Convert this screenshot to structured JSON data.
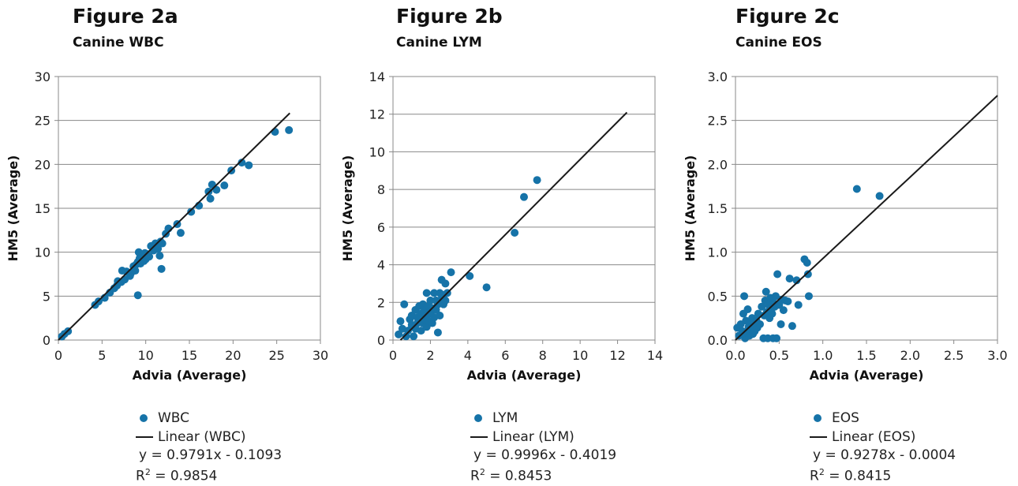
{
  "colors": {
    "marker": "#1673a8",
    "fit_line": "#1a1a1a",
    "frame": "#888888"
  },
  "chart_data": [
    {
      "type": "scatter",
      "title": "Figure 2a",
      "subtitle": "Canine WBC",
      "xlabel": "Advia (Average)",
      "ylabel": "HM5 (Average)",
      "xlim": [
        0,
        30
      ],
      "ylim": [
        0,
        30
      ],
      "xticks": [
        0,
        5,
        10,
        15,
        20,
        25,
        30
      ],
      "yticks": [
        0,
        5,
        10,
        15,
        20,
        25,
        30
      ],
      "xtick_labels": [
        "0",
        "5",
        "10",
        "15",
        "20",
        "25",
        "30"
      ],
      "ytick_labels": [
        "0",
        "5",
        "10",
        "15",
        "20",
        "25",
        "30"
      ],
      "grid": "horizontal",
      "legend": {
        "series_label": "WBC",
        "fit_label": "Linear (WBC)",
        "equation": "y = 0.9791x - 0.1093",
        "r2_label": "R",
        "r2_sup": "2",
        "r2_value": " = 0.9854"
      },
      "fit": {
        "slope": 0.9791,
        "intercept": -0.1093,
        "x_range": [
          0,
          26.5
        ]
      },
      "points": [
        [
          0.4,
          0.4
        ],
        [
          0.7,
          0.7
        ],
        [
          1.1,
          1.0
        ],
        [
          4.2,
          4.0
        ],
        [
          4.6,
          4.4
        ],
        [
          5.3,
          4.8
        ],
        [
          5.9,
          5.4
        ],
        [
          6.4,
          5.9
        ],
        [
          6.7,
          6.2
        ],
        [
          6.8,
          6.7
        ],
        [
          7.2,
          6.6
        ],
        [
          7.3,
          7.9
        ],
        [
          7.6,
          6.9
        ],
        [
          7.8,
          7.8
        ],
        [
          8.2,
          7.3
        ],
        [
          8.3,
          7.6
        ],
        [
          8.6,
          8.4
        ],
        [
          8.8,
          7.9
        ],
        [
          8.9,
          8.6
        ],
        [
          9.1,
          8.9
        ],
        [
          9.2,
          10.0
        ],
        [
          9.3,
          9.3
        ],
        [
          9.4,
          8.7
        ],
        [
          9.6,
          9.6
        ],
        [
          9.8,
          9.0
        ],
        [
          9.9,
          9.9
        ],
        [
          10.0,
          9.2
        ],
        [
          10.1,
          9.8
        ],
        [
          10.4,
          9.5
        ],
        [
          10.6,
          10.7
        ],
        [
          10.9,
          10.2
        ],
        [
          11.1,
          11.0
        ],
        [
          11.4,
          10.4
        ],
        [
          11.6,
          9.6
        ],
        [
          11.7,
          11.2
        ],
        [
          11.9,
          11.0
        ],
        [
          11.8,
          8.1
        ],
        [
          9.1,
          5.1
        ],
        [
          12.3,
          12.1
        ],
        [
          12.6,
          12.7
        ],
        [
          13.6,
          13.2
        ],
        [
          14.0,
          12.2
        ],
        [
          15.2,
          14.6
        ],
        [
          16.1,
          15.3
        ],
        [
          17.2,
          16.9
        ],
        [
          17.4,
          16.1
        ],
        [
          17.6,
          17.7
        ],
        [
          18.1,
          17.1
        ],
        [
          19.0,
          17.6
        ],
        [
          19.8,
          19.3
        ],
        [
          21.0,
          20.2
        ],
        [
          21.8,
          19.9
        ],
        [
          24.8,
          23.7
        ],
        [
          26.4,
          23.9
        ]
      ]
    },
    {
      "type": "scatter",
      "title": "Figure 2b",
      "subtitle": "Canine LYM",
      "xlabel": "Advia (Average)",
      "ylabel": "HM5 (Average)",
      "xlim": [
        0,
        14
      ],
      "ylim": [
        0,
        14
      ],
      "xticks": [
        0,
        2,
        4,
        6,
        8,
        10,
        12,
        14
      ],
      "yticks": [
        0,
        2,
        4,
        6,
        8,
        10,
        12,
        14
      ],
      "xtick_labels": [
        "0",
        "2",
        "4",
        "6",
        "8",
        "10",
        "12",
        "14"
      ],
      "ytick_labels": [
        "0",
        "2",
        "4",
        "6",
        "8",
        "10",
        "12",
        "14"
      ],
      "grid": "horizontal",
      "legend": {
        "series_label": "LYM",
        "fit_label": "Linear (LYM)",
        "equation": "y = 0.9996x - 0.4019",
        "r2_label": "R",
        "r2_sup": "2",
        "r2_value": " = 0.8453"
      },
      "fit": {
        "slope": 0.9996,
        "intercept": -0.4019,
        "x_range": [
          0.4,
          12.5
        ]
      },
      "points": [
        [
          0.3,
          0.3
        ],
        [
          0.4,
          1.0
        ],
        [
          0.5,
          0.6
        ],
        [
          0.6,
          1.9
        ],
        [
          0.7,
          0.2
        ],
        [
          0.8,
          0.5
        ],
        [
          0.9,
          1.1
        ],
        [
          1.0,
          0.8
        ],
        [
          1.0,
          1.3
        ],
        [
          1.1,
          0.2
        ],
        [
          1.2,
          0.6
        ],
        [
          1.2,
          1.6
        ],
        [
          1.3,
          0.9
        ],
        [
          1.3,
          1.2
        ],
        [
          1.4,
          1.8
        ],
        [
          1.5,
          0.5
        ],
        [
          1.5,
          1.4
        ],
        [
          1.6,
          0.9
        ],
        [
          1.6,
          1.9
        ],
        [
          1.7,
          1.1
        ],
        [
          1.7,
          1.6
        ],
        [
          1.8,
          0.7
        ],
        [
          1.8,
          1.3
        ],
        [
          1.8,
          2.5
        ],
        [
          1.9,
          1.0
        ],
        [
          1.9,
          1.8
        ],
        [
          2.0,
          1.4
        ],
        [
          2.0,
          2.1
        ],
        [
          2.1,
          0.9
        ],
        [
          2.1,
          1.7
        ],
        [
          2.2,
          2.5
        ],
        [
          2.2,
          1.2
        ],
        [
          2.3,
          1.6
        ],
        [
          2.3,
          2.1
        ],
        [
          2.4,
          0.4
        ],
        [
          2.4,
          1.9
        ],
        [
          2.5,
          2.5
        ],
        [
          2.5,
          1.3
        ],
        [
          2.6,
          3.2
        ],
        [
          2.6,
          2.2
        ],
        [
          2.7,
          1.9
        ],
        [
          2.7,
          2.4
        ],
        [
          2.8,
          2.1
        ],
        [
          2.8,
          3.0
        ],
        [
          2.9,
          2.5
        ],
        [
          3.1,
          3.6
        ],
        [
          4.1,
          3.4
        ],
        [
          5.0,
          2.8
        ],
        [
          6.5,
          5.7
        ],
        [
          7.0,
          7.6
        ],
        [
          7.7,
          8.5
        ]
      ]
    },
    {
      "type": "scatter",
      "title": "Figure 2c",
      "subtitle": "Canine EOS",
      "xlabel": "Advia (Average)",
      "ylabel": "HM5 (Average)",
      "xlim": [
        0,
        3
      ],
      "ylim": [
        0,
        3
      ],
      "xticks": [
        0,
        0.5,
        1,
        1.5,
        2,
        2.5,
        3
      ],
      "yticks": [
        0,
        0.5,
        1,
        1.5,
        2,
        2.5,
        3
      ],
      "xtick_labels": [
        "0.0",
        "0.5",
        "1.0",
        "1.5",
        "2.0",
        "2.5",
        "3.0"
      ],
      "ytick_labels": [
        "0.0",
        "0.5",
        "1.0",
        "1.5",
        "2.0",
        "2.5",
        "3.0"
      ],
      "grid": "horizontal",
      "legend": {
        "series_label": "EOS",
        "fit_label": "Linear (EOS)",
        "equation": "y = 0.9278x - 0.0004",
        "r2_label": "R",
        "r2_sup": "2",
        "r2_value": " = 0.8415"
      },
      "fit": {
        "slope": 0.9278,
        "intercept": -0.0004,
        "x_range": [
          0,
          3.0
        ]
      },
      "points": [
        [
          0.02,
          0.14
        ],
        [
          0.04,
          0.05
        ],
        [
          0.06,
          0.18
        ],
        [
          0.08,
          0.1
        ],
        [
          0.09,
          0.3
        ],
        [
          0.1,
          0.5
        ],
        [
          0.11,
          0.02
        ],
        [
          0.12,
          0.22
        ],
        [
          0.13,
          0.08
        ],
        [
          0.14,
          0.35
        ],
        [
          0.15,
          0.15
        ],
        [
          0.16,
          0.05
        ],
        [
          0.17,
          0.2
        ],
        [
          0.18,
          0.12
        ],
        [
          0.19,
          0.25
        ],
        [
          0.2,
          0.07
        ],
        [
          0.21,
          0.17
        ],
        [
          0.22,
          0.1
        ],
        [
          0.24,
          0.22
        ],
        [
          0.25,
          0.14
        ],
        [
          0.26,
          0.3
        ],
        [
          0.28,
          0.18
        ],
        [
          0.3,
          0.38
        ],
        [
          0.32,
          0.02
        ],
        [
          0.33,
          0.28
        ],
        [
          0.34,
          0.45
        ],
        [
          0.35,
          0.55
        ],
        [
          0.36,
          0.32
        ],
        [
          0.37,
          0.02
        ],
        [
          0.38,
          0.4
        ],
        [
          0.39,
          0.25
        ],
        [
          0.4,
          0.48
        ],
        [
          0.41,
          0.35
        ],
        [
          0.42,
          0.3
        ],
        [
          0.43,
          0.02
        ],
        [
          0.44,
          0.42
        ],
        [
          0.45,
          0.38
        ],
        [
          0.46,
          0.5
        ],
        [
          0.47,
          0.02
        ],
        [
          0.48,
          0.75
        ],
        [
          0.5,
          0.4
        ],
        [
          0.52,
          0.18
        ],
        [
          0.53,
          0.46
        ],
        [
          0.55,
          0.34
        ],
        [
          0.57,
          0.45
        ],
        [
          0.6,
          0.44
        ],
        [
          0.62,
          0.7
        ],
        [
          0.65,
          0.16
        ],
        [
          0.7,
          0.68
        ],
        [
          0.72,
          0.4
        ],
        [
          0.79,
          0.92
        ],
        [
          0.82,
          0.88
        ],
        [
          0.83,
          0.75
        ],
        [
          0.84,
          0.5
        ],
        [
          1.39,
          1.72
        ],
        [
          1.65,
          1.64
        ]
      ]
    }
  ]
}
